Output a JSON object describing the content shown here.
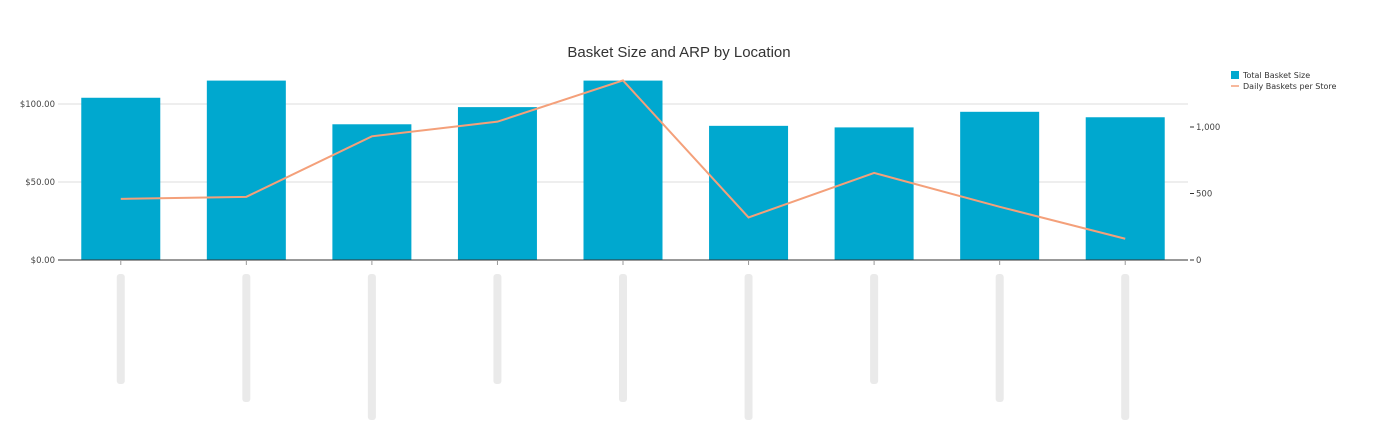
{
  "colors": {
    "bar": "#00a8cf",
    "line": "#f4a07a",
    "grid": "#dcdcdc",
    "axis": "#333333"
  },
  "chart_data": {
    "type": "bar",
    "title": "Basket Size and ARP by Location",
    "categories": [
      "",
      "",
      "",
      "",
      "",
      "",
      "",
      "",
      ""
    ],
    "categories_note_hidden": true,
    "series": [
      {
        "name": "Total Basket Size",
        "type": "bar",
        "axis": "left",
        "values": [
          104,
          115,
          87,
          98,
          115,
          86,
          85,
          95,
          91.5
        ]
      },
      {
        "name": "Daily Baskets per Store",
        "type": "line",
        "axis": "right",
        "values": [
          460,
          475,
          930,
          1040,
          1350,
          320,
          655,
          400,
          160
        ]
      }
    ],
    "left_axis": {
      "ylim": [
        0,
        100
      ],
      "ticks": [
        0,
        50,
        100
      ],
      "tick_labels": [
        "$0.00",
        "$50.00",
        "$100.00"
      ]
    },
    "right_axis": {
      "ticks": [
        0,
        500,
        1000
      ],
      "tick_labels": [
        "0",
        "500",
        "1,000"
      ]
    },
    "grid": true,
    "legend": {
      "position": "top-right",
      "entries": [
        "Total Basket Size",
        "Daily Baskets per Store"
      ]
    }
  }
}
